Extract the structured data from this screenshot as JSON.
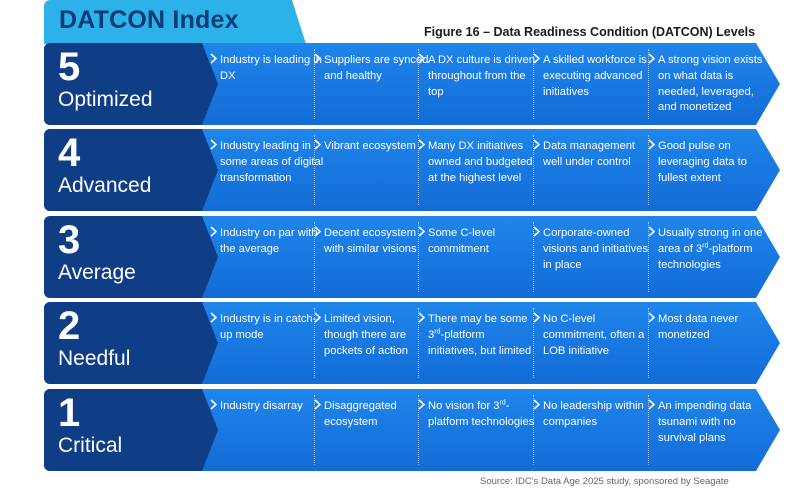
{
  "header": {
    "tab_title": "DATCON Index",
    "figure_title": "Figure 16 – Data Readiness Condition (DATCON) Levels"
  },
  "rows": [
    {
      "level": "5",
      "name": "Optimized",
      "cells": [
        "Industry is leading in DX",
        "Suppliers are synced and healthy",
        "A DX culture is driven throughout from the top",
        "A skilled workforce is executing advanced initiatives",
        "A strong vision exists on what data is needed, leveraged, and monetized"
      ]
    },
    {
      "level": "4",
      "name": "Advanced",
      "cells": [
        "Industry leading in some areas of digital transformation",
        "Vibrant ecosystem",
        "Many DX initiatives owned and budgeted at the highest level",
        "Data management well under control",
        "Good pulse on leveraging data to fullest extent"
      ]
    },
    {
      "level": "3",
      "name": "Average",
      "cells": [
        "Industry on par with the average",
        "Decent ecosystem with similar visions",
        "Some C-level commitment",
        "Corporate-owned visions and initiatives in place",
        "Usually strong in one area of 3rd-platform technologies"
      ]
    },
    {
      "level": "2",
      "name": "Needful",
      "cells": [
        "Industry is in catch-up mode",
        "Limited vision, though there are pockets of action",
        "There may be some 3rd-platform initiatives, but limited",
        "No C-level commitment, often a LOB initiative",
        "Most data never monetized"
      ]
    },
    {
      "level": "1",
      "name": "Critical",
      "cells": [
        "Industry disarray",
        "Disaggregated ecosystem",
        "No vision for 3rd-platform technologies",
        "No leadership within companies",
        "An impending data tsunami with no survival plans"
      ]
    }
  ],
  "footer": {
    "source": "Source: IDC's Data Age 2025 study, sponsored by Seagate"
  },
  "colors": {
    "tab": "#2cb2e8",
    "tab_text": "#0a3a78",
    "row_blue": "#1877e0",
    "level_navy": "#0f3d86"
  }
}
